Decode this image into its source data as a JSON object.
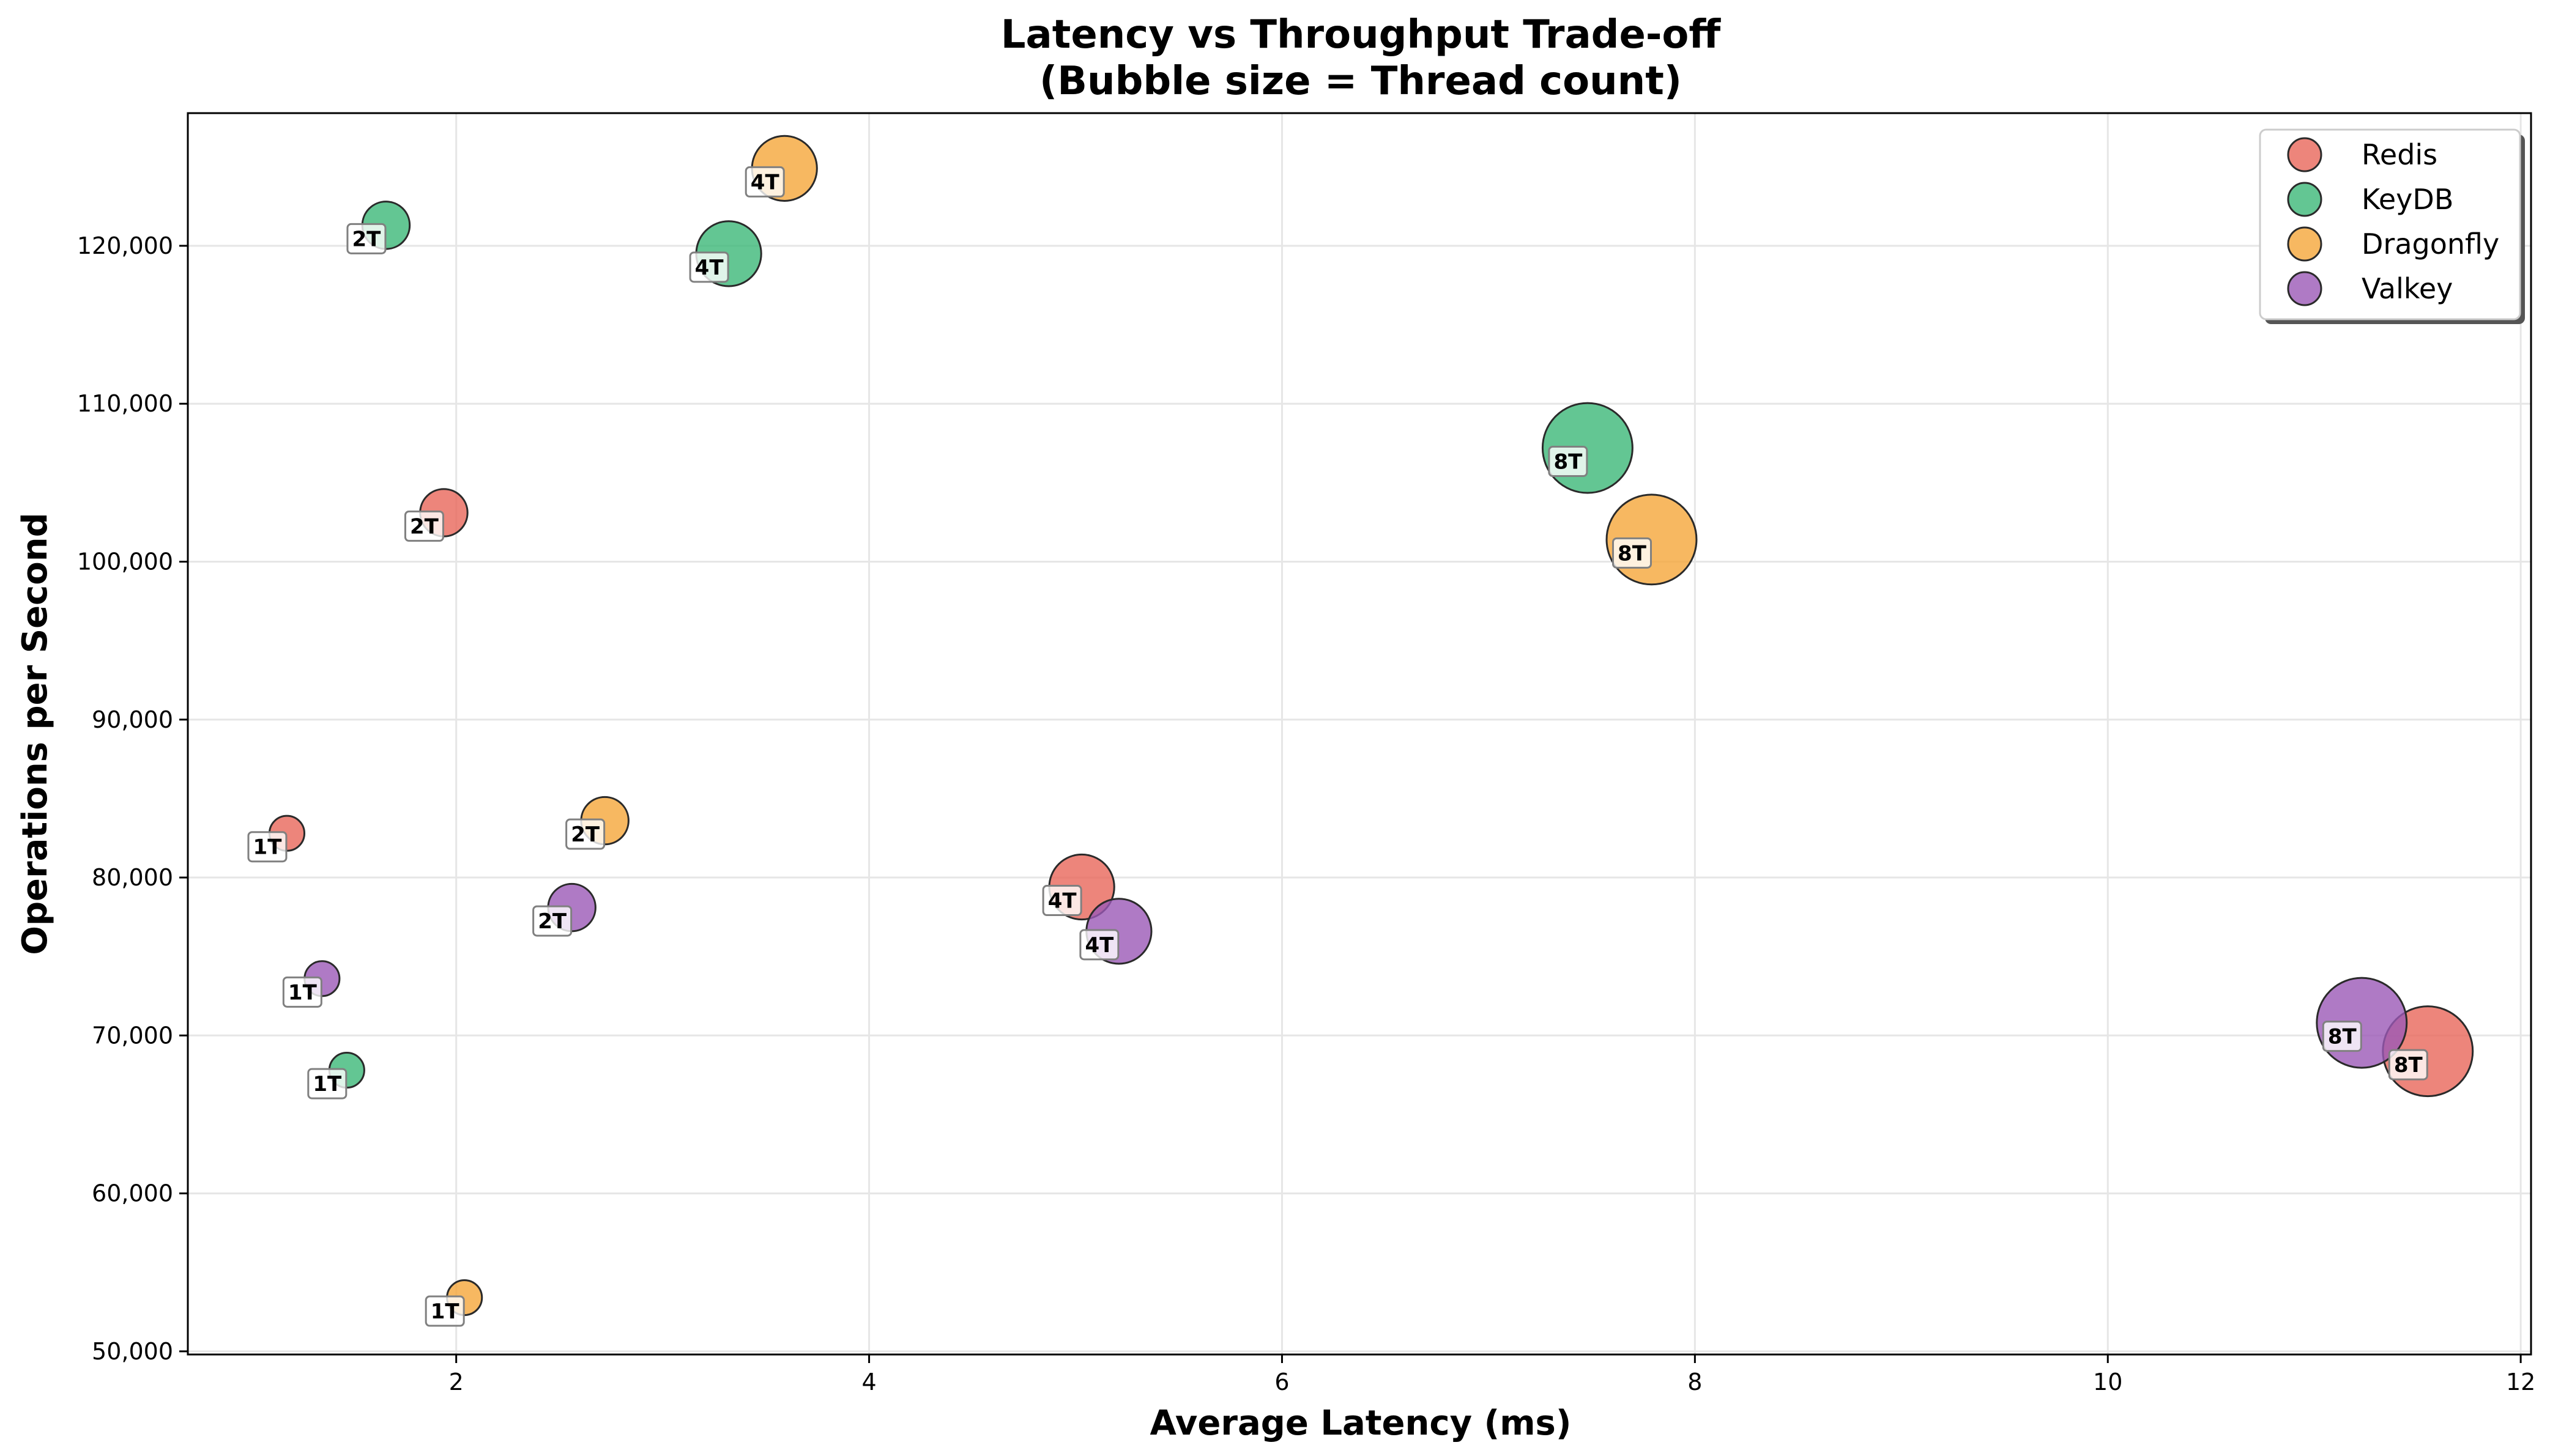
{
  "chart_data": {
    "type": "scatter",
    "title": "Latency vs Throughput Trade-off",
    "subtitle": "(Bubble size = Thread count)",
    "xlabel": "Average Latency (ms)",
    "ylabel": "Operations per Second",
    "xlim": [
      0.7,
      12.05
    ],
    "ylim": [
      49800,
      128400
    ],
    "xticks": [
      2,
      4,
      6,
      8,
      10,
      12
    ],
    "yticks": [
      50000,
      60000,
      70000,
      80000,
      90000,
      100000,
      110000,
      120000
    ],
    "grid": true,
    "legend_position": "top-right",
    "series": [
      {
        "name": "Redis",
        "color": "#e8675a",
        "points": [
          {
            "x": 1.18,
            "y": 82800,
            "threads": 1,
            "label": "1T"
          },
          {
            "x": 1.94,
            "y": 103100,
            "threads": 2,
            "label": "2T"
          },
          {
            "x": 5.03,
            "y": 79400,
            "threads": 4,
            "label": "4T"
          },
          {
            "x": 11.55,
            "y": 69000,
            "threads": 8,
            "label": "8T"
          }
        ]
      },
      {
        "name": "KeyDB",
        "color": "#3cb878",
        "points": [
          {
            "x": 1.47,
            "y": 67800,
            "threads": 1,
            "label": "1T"
          },
          {
            "x": 1.66,
            "y": 121300,
            "threads": 2,
            "label": "2T"
          },
          {
            "x": 3.32,
            "y": 119500,
            "threads": 4,
            "label": "4T"
          },
          {
            "x": 7.48,
            "y": 107200,
            "threads": 8,
            "label": "8T"
          }
        ]
      },
      {
        "name": "Dragonfly",
        "color": "#f5a63a",
        "points": [
          {
            "x": 2.04,
            "y": 53400,
            "threads": 1,
            "label": "1T"
          },
          {
            "x": 2.72,
            "y": 83600,
            "threads": 2,
            "label": "2T"
          },
          {
            "x": 3.59,
            "y": 124900,
            "threads": 4,
            "label": "4T"
          },
          {
            "x": 7.79,
            "y": 101400,
            "threads": 8,
            "label": "8T"
          }
        ]
      },
      {
        "name": "Valkey",
        "color": "#9b59b6",
        "points": [
          {
            "x": 1.35,
            "y": 73600,
            "threads": 1,
            "label": "1T"
          },
          {
            "x": 2.56,
            "y": 78100,
            "threads": 2,
            "label": "2T"
          },
          {
            "x": 5.21,
            "y": 76600,
            "threads": 4,
            "label": "4T"
          },
          {
            "x": 11.23,
            "y": 70800,
            "threads": 8,
            "label": "8T"
          }
        ]
      }
    ]
  }
}
